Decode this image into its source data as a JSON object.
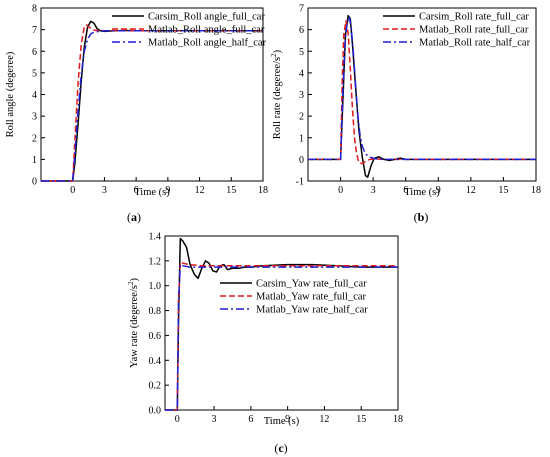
{
  "colors": {
    "carsim": "#000000",
    "matlab_full": "#e31a1c",
    "matlab_half": "#1f1fd6"
  },
  "chart_data": [
    {
      "type": "line",
      "panel": "(a)",
      "xlabel": "Time (s)",
      "ylabel": "Roll angle (degeree)",
      "xlim": [
        -3,
        18
      ],
      "ylim": [
        0,
        8
      ],
      "xticks": [
        0,
        3,
        6,
        9,
        12,
        15,
        18
      ],
      "yticks": [
        0,
        1,
        2,
        3,
        4,
        5,
        6,
        7,
        8
      ],
      "legend_position": "upper-right",
      "series": [
        {
          "name": "Carsim_Roll angle_full_car",
          "style": "solid",
          "color": "#000000",
          "x": [
            -3,
            0,
            0.2,
            0.5,
            0.8,
            1.1,
            1.4,
            1.7,
            2.0,
            2.3,
            2.6,
            3.0,
            4.0,
            5.0,
            6.0,
            9.0,
            12.0,
            15.0,
            18.0
          ],
          "y": [
            0,
            0,
            0.8,
            2.6,
            4.6,
            6.2,
            7.1,
            7.38,
            7.3,
            7.05,
            6.95,
            6.92,
            6.95,
            6.96,
            6.95,
            6.95,
            6.95,
            6.95,
            6.95
          ]
        },
        {
          "name": "Matlab_Roll angle_full_car",
          "style": "dash",
          "color": "#e31a1c",
          "x": [
            -3,
            0,
            0.2,
            0.5,
            0.8,
            1.1,
            1.3,
            1.6,
            2.0,
            2.5,
            3.0,
            4.0,
            6.0,
            9.0,
            12.0,
            15.0,
            18.0
          ],
          "y": [
            0,
            0,
            1.8,
            4.5,
            6.3,
            7.15,
            7.22,
            7.1,
            6.98,
            6.95,
            6.95,
            6.96,
            6.95,
            6.95,
            6.95,
            6.95,
            6.95
          ]
        },
        {
          "name": "Matlab_Roll angle_half_car",
          "style": "dashdot",
          "color": "#1f1fd6",
          "x": [
            -3,
            0,
            0.2,
            0.5,
            0.8,
            1.1,
            1.4,
            1.7,
            2.0,
            2.5,
            3.0,
            4.0,
            6.0,
            9.0,
            12.0,
            15.0,
            18.0
          ],
          "y": [
            0,
            0,
            1.2,
            3.2,
            4.9,
            6.0,
            6.55,
            6.8,
            6.88,
            6.92,
            6.94,
            6.95,
            6.95,
            6.95,
            6.95,
            6.95,
            6.95
          ]
        }
      ]
    },
    {
      "type": "line",
      "panel": "(b)",
      "xlabel": "Time (s)",
      "ylabel": "Roll rate (degeree/s)",
      "ylabel_sup": "2",
      "xlim": [
        -3,
        18
      ],
      "ylim": [
        -1,
        7
      ],
      "xticks": [
        0,
        3,
        6,
        9,
        12,
        15,
        18
      ],
      "yticks": [
        -1,
        0,
        1,
        2,
        3,
        4,
        5,
        6,
        7
      ],
      "legend_position": "upper-right",
      "series": [
        {
          "name": "Carsim_Roll rate_full_car",
          "style": "solid",
          "color": "#000000",
          "x": [
            -3,
            0,
            0.2,
            0.45,
            0.7,
            0.9,
            1.1,
            1.4,
            1.7,
            2.0,
            2.3,
            2.5,
            2.8,
            3.1,
            3.5,
            4.0,
            4.5,
            5.0,
            5.5,
            6.0,
            7.0,
            9.0,
            12.0,
            18.0
          ],
          "y": [
            0,
            0,
            2.5,
            5.8,
            6.65,
            6.5,
            5.3,
            3.2,
            1.3,
            0.1,
            -0.75,
            -0.82,
            -0.3,
            0.05,
            0.12,
            0.0,
            -0.05,
            0.0,
            0.06,
            0.0,
            0.0,
            0.0,
            0.0,
            0.0
          ]
        },
        {
          "name": "Matlab_Roll rate_full_car",
          "style": "dash",
          "color": "#e31a1c",
          "x": [
            -3,
            0,
            0.15,
            0.3,
            0.5,
            0.7,
            0.9,
            1.1,
            1.3,
            1.5,
            1.7,
            2.0,
            2.3,
            2.7,
            3.2,
            4.0,
            18.0
          ],
          "y": [
            0,
            0,
            3.6,
            5.8,
            6.4,
            5.8,
            4.2,
            2.3,
            0.9,
            0.2,
            -0.15,
            -0.2,
            -0.1,
            0.0,
            0.02,
            0.0,
            0.0
          ]
        },
        {
          "name": "Matlab_Roll rate_half_car",
          "style": "dashdot",
          "color": "#1f1fd6",
          "x": [
            -3,
            0,
            0.2,
            0.4,
            0.6,
            0.8,
            1.0,
            1.2,
            1.4,
            1.6,
            1.8,
            2.0,
            2.3,
            2.7,
            3.2,
            4.0,
            18.0
          ],
          "y": [
            0,
            0,
            2.9,
            5.3,
            6.3,
            6.6,
            6.0,
            4.8,
            3.3,
            2.0,
            1.1,
            0.6,
            0.25,
            0.1,
            0.03,
            0.0,
            0.0
          ]
        }
      ]
    },
    {
      "type": "line",
      "panel": "(c)",
      "xlabel": "Time (s)",
      "ylabel": "Yaw rate (degeree/s)",
      "ylabel_sup": "2",
      "xlim": [
        -1,
        18
      ],
      "ylim": [
        0,
        1.4
      ],
      "xticks": [
        0,
        3,
        6,
        9,
        12,
        15,
        18
      ],
      "yticks": [
        0.0,
        0.2,
        0.4,
        0.6,
        0.8,
        1.0,
        1.2,
        1.4
      ],
      "legend_position": "right",
      "series": [
        {
          "name": "Carsim_Yaw rate_full_car",
          "style": "solid",
          "color": "#000000",
          "x": [
            -1,
            0,
            0.1,
            0.25,
            0.45,
            0.75,
            1.05,
            1.4,
            1.7,
            2.0,
            2.3,
            2.6,
            2.9,
            3.2,
            3.5,
            3.8,
            4.1,
            4.5,
            5.0,
            5.5,
            6.0,
            7.0,
            9.0,
            11.0,
            13.0,
            15.0,
            18.0
          ],
          "y": [
            0,
            0,
            0.7,
            1.38,
            1.36,
            1.31,
            1.17,
            1.09,
            1.06,
            1.14,
            1.2,
            1.18,
            1.12,
            1.11,
            1.16,
            1.17,
            1.13,
            1.14,
            1.14,
            1.15,
            1.15,
            1.16,
            1.17,
            1.17,
            1.16,
            1.15,
            1.15
          ]
        },
        {
          "name": "Matlab_Yaw rate_full_car",
          "style": "dash",
          "color": "#e31a1c",
          "x": [
            -1,
            0,
            0.1,
            0.25,
            0.5,
            1.0,
            2.0,
            4.0,
            18.0
          ],
          "y": [
            0,
            0,
            0.9,
            1.19,
            1.18,
            1.17,
            1.16,
            1.16,
            1.16
          ]
        },
        {
          "name": "Matlab_Yaw rate_half_car",
          "style": "dashdot",
          "color": "#1f1fd6",
          "x": [
            -1,
            0,
            0.1,
            0.25,
            0.5,
            1.0,
            2.0,
            4.0,
            18.0
          ],
          "y": [
            0,
            0,
            0.85,
            1.17,
            1.16,
            1.15,
            1.15,
            1.15,
            1.15
          ]
        }
      ]
    }
  ]
}
